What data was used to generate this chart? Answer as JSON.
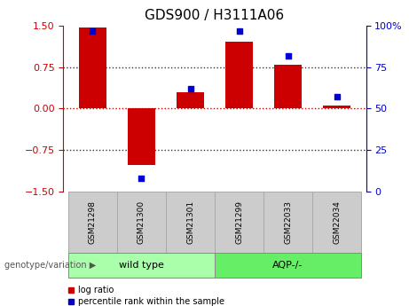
{
  "title": "GDS900 / H3111A06",
  "samples": [
    "GSM21298",
    "GSM21300",
    "GSM21301",
    "GSM21299",
    "GSM22033",
    "GSM22034"
  ],
  "log_ratio": [
    1.48,
    -1.02,
    0.3,
    1.22,
    0.8,
    0.05
  ],
  "percentile_rank": [
    97,
    8,
    62,
    97,
    82,
    57
  ],
  "bar_color": "#cc0000",
  "dot_color": "#0000cc",
  "ylim_left": [
    -1.5,
    1.5
  ],
  "ylim_right": [
    0,
    100
  ],
  "yticks_left": [
    -1.5,
    -0.75,
    0,
    0.75,
    1.5
  ],
  "yticks_right": [
    0,
    25,
    50,
    75,
    100
  ],
  "ytick_labels_right": [
    "0",
    "25",
    "50",
    "75",
    "100%"
  ],
  "hlines": [
    0.75,
    0.0,
    -0.75
  ],
  "hline_colors": [
    "#333333",
    "#cc0000",
    "#333333"
  ],
  "group1_label": "wild type",
  "group2_label": "AQP-/-",
  "group1_color": "#aaffaa",
  "group2_color": "#66ee66",
  "group_label_prefix": "genotype/variation",
  "legend_bar_label": "log ratio",
  "legend_dot_label": "percentile rank within the sample",
  "background_color": "#ffffff",
  "label_box_color": "#cccccc",
  "label_box_edge": "#aaaaaa",
  "bar_width": 0.55,
  "tick_label_size": 8,
  "title_fontsize": 11
}
